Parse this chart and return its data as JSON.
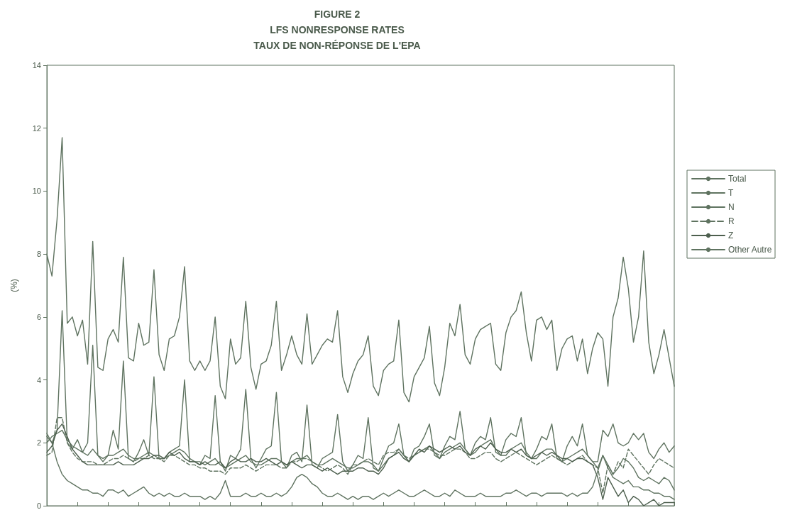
{
  "chart_data": {
    "type": "line",
    "title": "FIGURE 2\nLFS NONRESPONSE RATES\nTAUX DE NON-RÉPONSE DE L'EPA",
    "ylabel": "(%)",
    "categories": [
      null,
      null,
      null,
      null,
      null,
      null,
      null,
      null,
      null,
      null,
      null,
      null,
      null,
      null,
      null,
      null,
      null,
      null,
      null,
      null,
      null,
      null,
      null,
      null,
      null,
      null,
      null,
      null,
      null,
      null,
      null,
      null,
      null,
      null,
      null,
      null,
      null,
      null,
      null,
      null,
      null,
      null,
      null,
      null,
      null,
      null,
      null,
      null,
      null,
      null,
      null,
      null,
      null,
      null,
      null,
      null,
      null,
      null,
      null,
      null,
      null,
      null,
      null,
      null,
      null,
      null,
      null,
      null,
      null,
      null,
      null,
      null,
      null,
      null,
      null,
      null,
      null,
      null,
      null,
      null,
      null,
      null,
      null,
      null,
      null,
      null,
      null,
      null,
      null,
      null,
      null,
      null,
      null,
      null,
      null,
      null,
      null,
      null,
      null,
      null,
      null,
      null,
      null,
      null,
      null,
      null,
      null,
      null,
      null,
      null,
      null,
      null,
      null,
      null,
      null,
      null,
      null,
      null,
      null,
      null,
      null,
      null,
      null,
      null
    ],
    "ylim": [
      0,
      14
    ],
    "yticks": [
      0,
      2,
      4,
      6,
      8,
      10,
      12,
      14
    ],
    "grid": false,
    "legend": "right",
    "tick_labels": "y",
    "marker": "none",
    "series": [
      {
        "name": "Total",
        "color": "#5f7360",
        "values": [
          8.0,
          7.3,
          9.1,
          11.7,
          5.8,
          6.0,
          5.4,
          5.9,
          4.5,
          8.4,
          4.4,
          4.3,
          5.3,
          5.6,
          5.2,
          7.9,
          4.7,
          4.6,
          5.8,
          5.1,
          5.2,
          7.5,
          4.8,
          4.3,
          5.3,
          5.4,
          6.0,
          7.6,
          4.6,
          4.3,
          4.6,
          4.3,
          4.6,
          6.0,
          3.8,
          3.4,
          5.3,
          4.5,
          4.7,
          6.5,
          4.4,
          3.7,
          4.5,
          4.6,
          5.1,
          6.5,
          4.3,
          4.8,
          5.4,
          4.8,
          4.5,
          6.1,
          4.5,
          4.8,
          5.1,
          5.3,
          5.2,
          6.2,
          4.1,
          3.6,
          4.2,
          4.6,
          4.8,
          5.4,
          3.8,
          3.5,
          4.3,
          4.5,
          4.6,
          5.9,
          3.6,
          3.3,
          4.1,
          4.4,
          4.7,
          5.7,
          3.9,
          3.5,
          4.4,
          5.8,
          5.4,
          6.4,
          4.8,
          4.5,
          5.3,
          5.6,
          5.7,
          5.8,
          4.5,
          4.3,
          5.5,
          6.0,
          6.2,
          6.8,
          5.5,
          4.6,
          5.9,
          6.0,
          5.6,
          5.9,
          4.3,
          5.0,
          5.3,
          5.4,
          4.6,
          5.3,
          4.2,
          5.0,
          5.5,
          5.3,
          3.8,
          6.0,
          6.6,
          7.9,
          6.9,
          5.2,
          6.0,
          8.1,
          5.2,
          4.2,
          4.8,
          5.6,
          4.7,
          3.8
        ]
      },
      {
        "name": "T",
        "color": "#5f7360",
        "values": [
          2.2,
          2.0,
          2.4,
          6.2,
          2.0,
          1.8,
          2.1,
          1.7,
          2.0,
          5.1,
          1.6,
          1.4,
          1.6,
          2.4,
          1.8,
          4.6,
          1.5,
          1.4,
          1.7,
          2.1,
          1.6,
          4.1,
          1.5,
          1.5,
          1.7,
          1.8,
          1.9,
          4.0,
          1.4,
          1.4,
          1.3,
          1.6,
          1.5,
          3.5,
          1.4,
          1.1,
          1.6,
          1.5,
          1.8,
          3.7,
          1.5,
          1.2,
          1.5,
          1.8,
          1.9,
          3.6,
          1.4,
          1.2,
          1.6,
          1.7,
          1.4,
          3.2,
          1.3,
          1.2,
          1.5,
          1.6,
          1.7,
          2.9,
          1.4,
          1.1,
          1.3,
          1.6,
          1.5,
          2.8,
          1.2,
          1.1,
          1.5,
          1.9,
          2.0,
          2.6,
          1.6,
          1.4,
          1.8,
          1.9,
          2.2,
          2.6,
          1.6,
          1.5,
          1.9,
          2.2,
          2.1,
          3.0,
          1.8,
          1.6,
          2.0,
          2.2,
          2.1,
          2.8,
          1.7,
          1.6,
          2.1,
          2.3,
          2.2,
          2.8,
          1.6,
          1.5,
          1.8,
          2.2,
          2.1,
          2.6,
          1.5,
          1.4,
          1.9,
          2.2,
          1.9,
          2.6,
          1.6,
          1.4,
          1.4,
          2.4,
          2.2,
          2.6,
          2.0,
          1.9,
          2.0,
          2.3,
          2.1,
          2.3,
          1.7,
          1.5,
          1.8,
          2.0,
          1.7,
          1.9
        ]
      },
      {
        "name": "N",
        "color": "#5f7360",
        "values": [
          2.0,
          2.2,
          2.3,
          2.4,
          2.1,
          1.9,
          1.8,
          1.7,
          1.6,
          1.8,
          1.6,
          1.5,
          1.6,
          1.6,
          1.7,
          1.8,
          1.6,
          1.5,
          1.5,
          1.6,
          1.7,
          1.6,
          1.5,
          1.5,
          1.6,
          1.7,
          1.8,
          1.7,
          1.5,
          1.4,
          1.4,
          1.3,
          1.4,
          1.5,
          1.3,
          1.2,
          1.3,
          1.4,
          1.5,
          1.6,
          1.4,
          1.3,
          1.3,
          1.4,
          1.5,
          1.5,
          1.4,
          1.3,
          1.4,
          1.5,
          1.5,
          1.6,
          1.4,
          1.3,
          1.3,
          1.4,
          1.5,
          1.4,
          1.3,
          1.2,
          1.2,
          1.3,
          1.4,
          1.4,
          1.3,
          1.1,
          1.3,
          1.5,
          1.6,
          1.8,
          1.6,
          1.4,
          1.6,
          1.7,
          1.8,
          1.9,
          1.7,
          1.5,
          1.7,
          1.8,
          1.9,
          2.0,
          1.8,
          1.6,
          1.7,
          1.9,
          2.0,
          2.1,
          1.8,
          1.6,
          1.6,
          1.8,
          1.9,
          2.0,
          1.7,
          1.5,
          1.5,
          1.7,
          1.8,
          1.8,
          1.6,
          1.4,
          1.5,
          1.6,
          1.7,
          1.8,
          1.6,
          1.4,
          1.2,
          1.6,
          1.3,
          1.0,
          1.2,
          1.5,
          1.4,
          1.2,
          0.9,
          0.8,
          0.9,
          0.8,
          0.7,
          0.9,
          0.8,
          0.5
        ]
      },
      {
        "name": "R",
        "color": "#5f7360",
        "line_style": "dashed",
        "values": [
          1.6,
          1.7,
          2.8,
          2.8,
          2.0,
          1.7,
          1.5,
          1.4,
          1.4,
          1.4,
          1.3,
          1.3,
          1.4,
          1.5,
          1.5,
          1.6,
          1.5,
          1.4,
          1.5,
          1.5,
          1.6,
          1.5,
          1.5,
          1.4,
          1.6,
          1.6,
          1.5,
          1.4,
          1.3,
          1.3,
          1.2,
          1.2,
          1.1,
          1.1,
          1.1,
          1.0,
          1.2,
          1.2,
          1.2,
          1.3,
          1.2,
          1.1,
          1.2,
          1.3,
          1.3,
          1.3,
          1.2,
          1.2,
          1.4,
          1.4,
          1.5,
          1.5,
          1.4,
          1.3,
          1.2,
          1.1,
          1.2,
          1.3,
          1.2,
          1.0,
          1.3,
          1.3,
          1.4,
          1.5,
          1.4,
          1.3,
          1.6,
          1.7,
          1.7,
          1.8,
          1.6,
          1.5,
          1.6,
          1.7,
          1.8,
          1.8,
          1.7,
          1.6,
          1.6,
          1.7,
          1.8,
          1.8,
          1.7,
          1.5,
          1.5,
          1.6,
          1.7,
          1.7,
          1.5,
          1.4,
          1.5,
          1.6,
          1.7,
          1.6,
          1.5,
          1.4,
          1.3,
          1.4,
          1.5,
          1.6,
          1.5,
          1.4,
          1.3,
          1.4,
          1.5,
          1.6,
          1.4,
          1.3,
          1.2,
          0.4,
          1.3,
          1.0,
          1.4,
          1.2,
          1.8,
          1.6,
          1.4,
          1.2,
          1.0,
          1.3,
          1.5,
          1.4,
          1.3,
          1.2
        ]
      },
      {
        "name": "Z",
        "color": "#4d5f4e",
        "values": [
          1.7,
          1.9,
          2.4,
          2.6,
          2.2,
          1.8,
          1.6,
          1.4,
          1.3,
          1.3,
          1.3,
          1.3,
          1.3,
          1.3,
          1.4,
          1.3,
          1.3,
          1.3,
          1.4,
          1.5,
          1.5,
          1.6,
          1.6,
          1.5,
          1.7,
          1.6,
          1.7,
          1.5,
          1.4,
          1.4,
          1.3,
          1.4,
          1.3,
          1.3,
          1.4,
          1.2,
          1.4,
          1.5,
          1.4,
          1.4,
          1.5,
          1.4,
          1.4,
          1.5,
          1.4,
          1.3,
          1.4,
          1.3,
          1.4,
          1.3,
          1.2,
          1.3,
          1.3,
          1.2,
          1.1,
          1.2,
          1.1,
          1.0,
          1.1,
          1.1,
          1.1,
          1.2,
          1.2,
          1.1,
          1.1,
          1.0,
          1.2,
          1.5,
          1.6,
          1.7,
          1.5,
          1.4,
          1.6,
          1.8,
          1.7,
          1.9,
          1.8,
          1.7,
          1.8,
          1.9,
          1.8,
          1.9,
          1.7,
          1.6,
          1.8,
          1.9,
          1.8,
          2.0,
          1.8,
          1.7,
          1.7,
          1.8,
          1.7,
          1.8,
          1.6,
          1.5,
          1.6,
          1.7,
          1.6,
          1.7,
          1.6,
          1.5,
          1.5,
          1.4,
          1.5,
          1.5,
          1.4,
          1.3,
          0.9,
          0.2,
          0.9,
          0.6,
          0.3,
          0.5,
          0.1,
          0.3,
          0.2,
          0.0,
          0.1,
          0.2,
          0.0,
          0.1,
          0.1,
          0.1
        ]
      },
      {
        "name": "Other Autre",
        "color": "#5f7360",
        "values": [
          2.3,
          2.0,
          1.4,
          1.0,
          0.8,
          0.7,
          0.6,
          0.5,
          0.5,
          0.4,
          0.4,
          0.3,
          0.5,
          0.5,
          0.4,
          0.5,
          0.3,
          0.4,
          0.5,
          0.6,
          0.4,
          0.3,
          0.4,
          0.3,
          0.4,
          0.3,
          0.3,
          0.4,
          0.3,
          0.3,
          0.3,
          0.2,
          0.3,
          0.2,
          0.4,
          0.8,
          0.3,
          0.3,
          0.3,
          0.4,
          0.3,
          0.3,
          0.4,
          0.3,
          0.3,
          0.4,
          0.3,
          0.4,
          0.6,
          0.9,
          1.0,
          0.9,
          0.7,
          0.6,
          0.4,
          0.3,
          0.3,
          0.4,
          0.3,
          0.2,
          0.3,
          0.2,
          0.3,
          0.3,
          0.2,
          0.3,
          0.4,
          0.3,
          0.4,
          0.5,
          0.4,
          0.3,
          0.3,
          0.4,
          0.5,
          0.4,
          0.3,
          0.3,
          0.4,
          0.3,
          0.5,
          0.4,
          0.3,
          0.3,
          0.3,
          0.4,
          0.3,
          0.3,
          0.3,
          0.3,
          0.4,
          0.4,
          0.5,
          0.4,
          0.3,
          0.4,
          0.4,
          0.3,
          0.4,
          0.4,
          0.4,
          0.4,
          0.3,
          0.4,
          0.3,
          0.4,
          0.4,
          0.6,
          1.1,
          1.6,
          1.2,
          0.9,
          0.8,
          0.7,
          0.8,
          0.6,
          0.6,
          0.5,
          0.5,
          0.4,
          0.4,
          0.3,
          0.3,
          0.2
        ]
      }
    ]
  }
}
